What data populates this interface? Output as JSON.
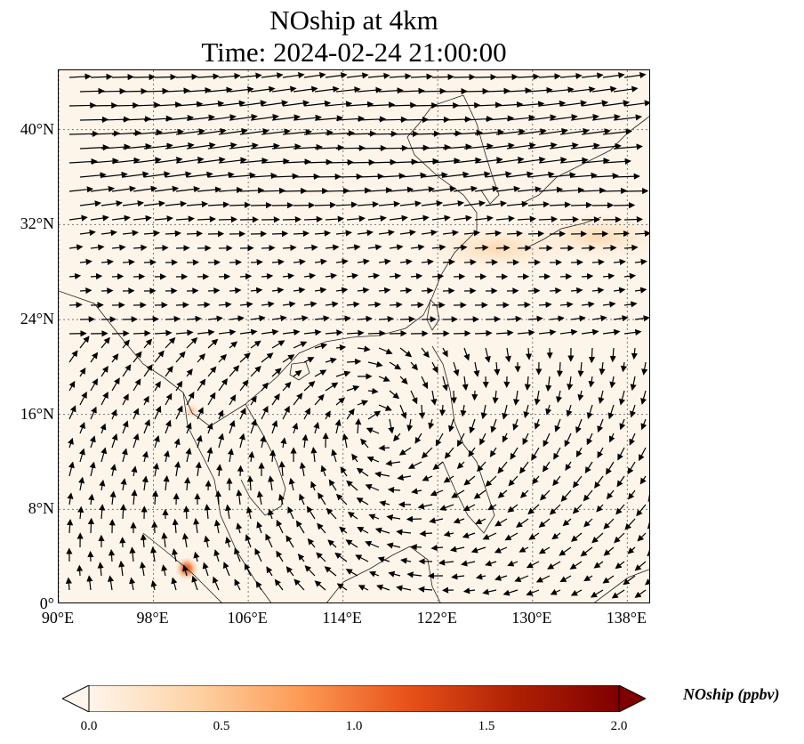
{
  "title": {
    "line1": "NOship at 4km",
    "line2": "Time: 2024-02-24 21:00:00"
  },
  "map": {
    "variable": "NOship",
    "level": "4km",
    "lon_range": [
      90,
      140
    ],
    "lat_range": [
      0,
      45
    ],
    "lat_ticks": [
      {
        "value": 40,
        "label": "40°N"
      },
      {
        "value": 32,
        "label": "32°N"
      },
      {
        "value": 24,
        "label": "24°N"
      },
      {
        "value": 16,
        "label": "16°N"
      },
      {
        "value": 8,
        "label": "8°N"
      },
      {
        "value": 0,
        "label": "0°"
      }
    ],
    "lon_ticks": [
      {
        "value": 90,
        "label": "90°E"
      },
      {
        "value": 98,
        "label": "98°E"
      },
      {
        "value": 106,
        "label": "106°E"
      },
      {
        "value": 114,
        "label": "114°E"
      },
      {
        "value": 122,
        "label": "122°E"
      },
      {
        "value": 130,
        "label": "130°E"
      },
      {
        "value": 138,
        "label": "138°E"
      }
    ],
    "gridlines": "dotted",
    "background_color": "#fef5ea",
    "highlights": [
      {
        "lon": 100.8,
        "lat": 3.0,
        "level": 1.2
      },
      {
        "lon": 101.2,
        "lat": 16.3,
        "level": 0.5
      },
      {
        "lon": 135.5,
        "lat": 31.0,
        "level": 0.35
      },
      {
        "lon": 127.0,
        "lat": 30.0,
        "level": 0.3
      }
    ]
  },
  "colorbar": {
    "min": 0.0,
    "max": 2.0,
    "ticks": [
      "0.0",
      "0.5",
      "1.0",
      "1.5",
      "2.0"
    ],
    "label": "NOship (ppbv)",
    "colors": [
      "#fff5eb",
      "#fdd3a5",
      "#fd9a54",
      "#e8521a",
      "#b02104",
      "#7f0000"
    ]
  }
}
